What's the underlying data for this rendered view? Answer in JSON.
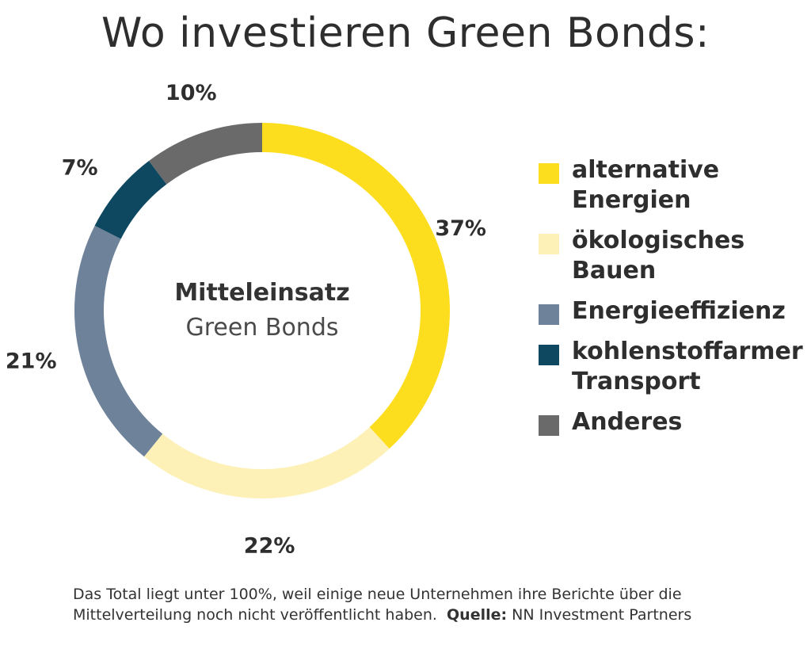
{
  "title": "Wo investieren Green Bonds:",
  "center": {
    "line1": "Mitteleinsatz",
    "line2": "Green Bonds"
  },
  "chart_data": {
    "type": "pie",
    "style": "donut",
    "title": "Wo investieren Green Bonds:",
    "categories": [
      "alternative Energien",
      "ökologisches Bauen",
      "Energieeffizienz",
      "kohlenstoffarmer Transport",
      "Anderes"
    ],
    "values": [
      37,
      22,
      21,
      7,
      10
    ],
    "value_labels": [
      "37%",
      "22%",
      "21%",
      "7%",
      "10%"
    ],
    "colors": [
      "#FDDE1F",
      "#FEF1B8",
      "#6E829A",
      "#0E4860",
      "#6A6A6A"
    ],
    "legend_position": "right"
  },
  "legend": [
    {
      "lines": [
        "alternative",
        "Energien"
      ],
      "color": "#FDDE1F"
    },
    {
      "lines": [
        "ökologisches",
        "Bauen"
      ],
      "color": "#FEF1B8"
    },
    {
      "lines": [
        "Energieeffizienz"
      ],
      "color": "#6E829A"
    },
    {
      "lines": [
        "kohlenstoffarmer",
        "Transport"
      ],
      "color": "#0E4860"
    },
    {
      "lines": [
        "Anderes"
      ],
      "color": "#6A6A6A"
    }
  ],
  "footnote": {
    "text": "Das Total liegt unter 100%, weil einige neue Unternehmen ihre Berichte über die Mittelverteilung noch nicht veröffentlicht haben.",
    "source_label": "Quelle:",
    "source": "NN Investment Partners"
  }
}
